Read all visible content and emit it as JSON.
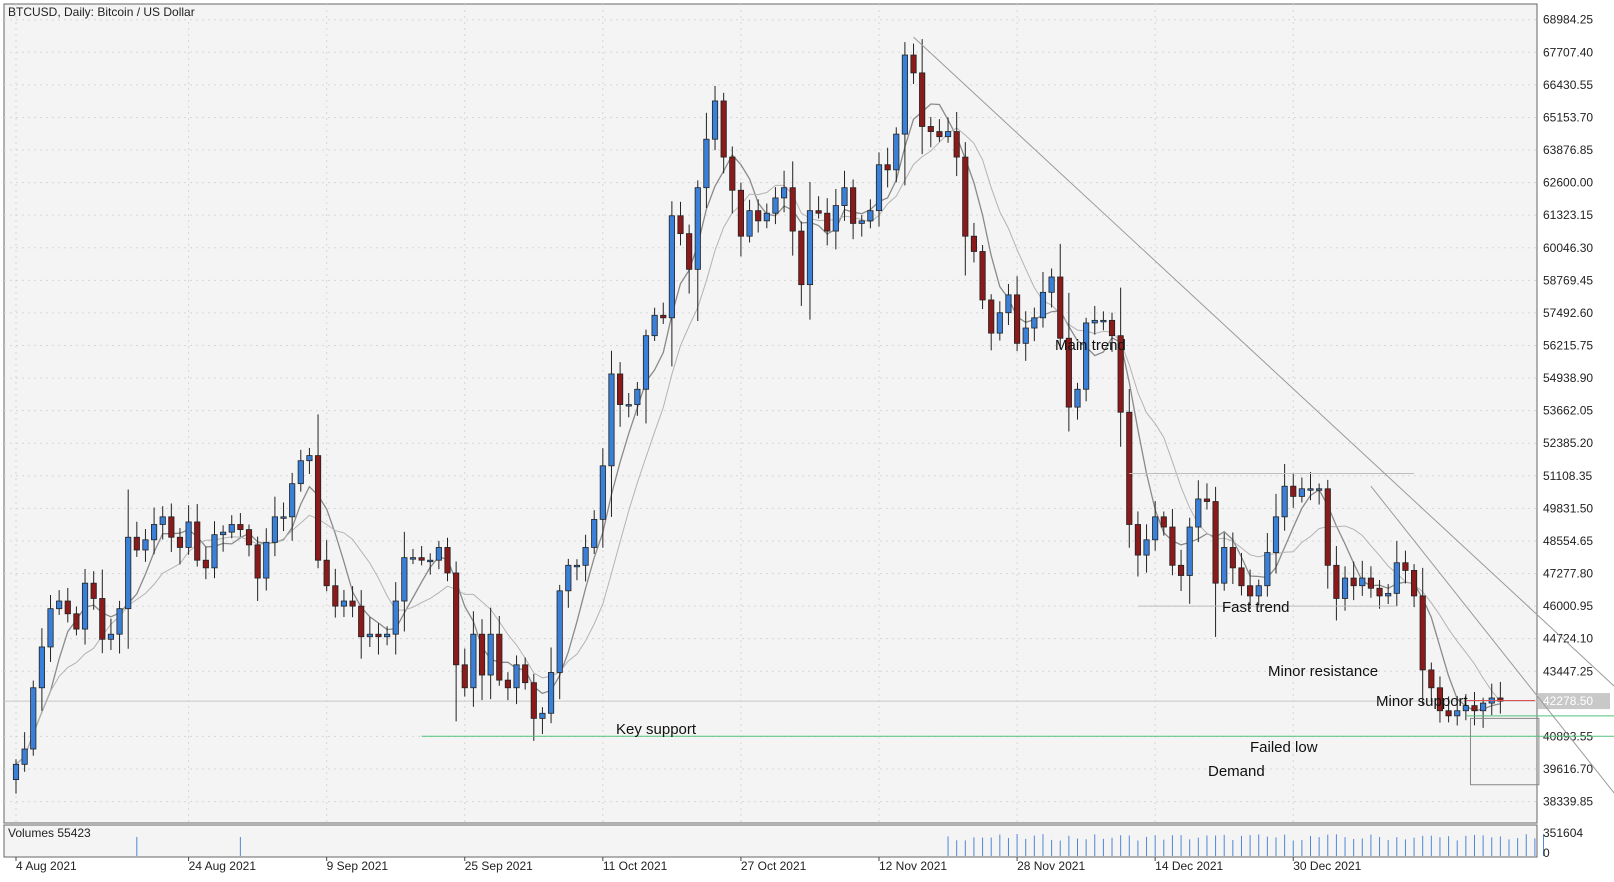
{
  "header": {
    "title": "BTCUSD, Daily:  Bitcoin / US Dollar"
  },
  "current_price": "42278.50",
  "volume_panel": {
    "label": "Volumes 55423"
  },
  "colors": {
    "background": "#f4f4f4",
    "grid": "#d6d6d6",
    "bull": "#3a80d8",
    "bear": "#8b1a1a",
    "wick": "#222222",
    "ma": "#9a9a9a",
    "trendline": "#9a9a9a",
    "support": "#52c27c",
    "resistance": "#e05050",
    "volume": "#4f86d9"
  },
  "chart_data": {
    "type": "candlestick",
    "title": "BTCUSD, Daily:  Bitcoin / US Dollar",
    "y_ticks": [
      "68984.25",
      "67707.40",
      "66430.55",
      "65153.70",
      "63876.85",
      "62600.00",
      "61323.15",
      "60046.30",
      "58769.45",
      "57492.60",
      "56215.75",
      "54938.90",
      "53662.05",
      "52385.20",
      "51108.35",
      "49831.50",
      "48554.65",
      "47277.80",
      "46000.95",
      "44724.10",
      "43447.25",
      "42278.50",
      "40893.55",
      "39616.70",
      "38339.85"
    ],
    "ylim": [
      37500,
      69600
    ],
    "x_ticks": [
      {
        "label": "4 Aug 2021",
        "index": 0
      },
      {
        "label": "24 Aug 2021",
        "index": 20
      },
      {
        "label": "9 Sep 2021",
        "index": 36
      },
      {
        "label": "25 Sep 2021",
        "index": 52
      },
      {
        "label": "11 Oct 2021",
        "index": 68
      },
      {
        "label": "27 Oct 2021",
        "index": 84
      },
      {
        "label": "12 Nov 2021",
        "index": 100
      },
      {
        "label": "28 Nov 2021",
        "index": 116
      },
      {
        "label": "14 Dec 2021",
        "index": 132
      },
      {
        "label": "30 Dec 2021",
        "index": 148
      }
    ],
    "start_date": "2021-08-04",
    "closes": [
      39800,
      40400,
      42800,
      44400,
      45900,
      46200,
      45700,
      45100,
      46900,
      46300,
      44700,
      44900,
      45900,
      48700,
      48200,
      48600,
      49200,
      49500,
      48700,
      48300,
      49300,
      47800,
      47500,
      48800,
      48900,
      49200,
      49000,
      48400,
      47100,
      48500,
      49500,
      49500,
      50800,
      51700,
      51900,
      47800,
      46800,
      46000,
      46200,
      46000,
      44800,
      44900,
      44800,
      44900,
      46200,
      47900,
      47900,
      47800,
      47800,
      48300,
      47300,
      43700,
      42800,
      44900,
      43300,
      44900,
      43100,
      42800,
      43700,
      43000,
      41600,
      41800,
      43400,
      46600,
      47600,
      47600,
      48300,
      49400,
      51500,
      55100,
      53900,
      53900,
      54500,
      56600,
      57400,
      57300,
      61300,
      60600,
      59200,
      62400,
      64300,
      65800,
      63600,
      62300,
      60500,
      61500,
      61100,
      61400,
      62000,
      62400,
      60700,
      58600,
      61500,
      61400,
      60700,
      61700,
      62400,
      61000,
      61100,
      61500,
      63300,
      63100,
      64500,
      67600,
      66900,
      64800,
      64600,
      64400,
      64600,
      63600,
      60500,
      59900,
      58000,
      56700,
      57500,
      58200,
      56300,
      56900,
      57300,
      58300,
      58900,
      56500,
      53800,
      54500,
      57100,
      57200,
      57200,
      56600,
      53600,
      49200,
      48000,
      48600,
      49500,
      49100,
      47600,
      47200,
      49100,
      50200,
      50100,
      46900,
      48300,
      47500,
      46800,
      46400,
      46800,
      48100,
      49500,
      50700,
      50300,
      50600,
      50600,
      50600,
      47600,
      46300,
      47100,
      46800,
      47100,
      46700,
      46400,
      46500,
      47700,
      47400,
      46400,
      43500,
      42800,
      41900,
      41700,
      41900,
      42100,
      41900,
      42200,
      42400,
      42278.5
    ],
    "volumes": [
      0.05,
      0.05,
      0.05,
      0.05,
      0.05,
      0.05,
      0.05,
      0.05,
      0.05,
      0.05,
      0.05,
      0.05,
      0.05,
      0.05,
      0.05,
      0.05,
      0.05,
      0.05,
      0.05,
      0.05,
      0.05,
      0.05,
      0.05,
      0.05,
      0.05,
      0.05,
      0.05,
      0.05,
      0.05,
      0.05,
      0.05,
      0.05,
      0.05,
      0.05,
      0.05,
      0.05,
      0.05,
      0.05,
      0.05,
      0.05,
      0.05,
      0.05,
      0.05,
      0.05,
      0.05,
      0.05,
      0.05,
      0.05,
      0.05,
      0.05,
      0.05,
      0.05,
      0.05,
      0.05,
      0.05,
      0.05,
      0.05,
      0.05,
      0.05,
      0.05,
      0.05,
      0.05,
      0.05,
      0.05,
      0.05,
      0.05,
      0.05,
      0.05,
      0.05,
      0.05,
      0.05,
      0.05,
      0.05,
      0.05,
      0.05,
      0.05,
      0.05,
      0.05,
      0.05,
      0.05,
      0.05,
      0.05,
      0.05,
      0.05,
      0.05,
      0.05,
      0.05,
      0.05,
      0.05,
      0.05,
      0.05,
      0.05,
      0.05,
      0.05,
      0.05,
      0.05,
      0.05,
      0.05,
      0.05,
      0.05,
      0.05,
      0.05,
      0.05,
      0.05,
      0.05,
      0.05,
      0.05,
      0.05,
      0.05,
      0.05,
      0.05,
      0.05,
      0.05,
      0.05,
      0.05,
      0.05,
      0.05,
      0.05,
      0.05,
      0.05,
      0.05,
      0.05,
      0.05,
      0.05,
      0.05,
      0.05,
      0.05,
      0.05,
      0.05,
      0.05,
      0.05,
      0.05,
      0.05,
      0.05,
      0.05,
      0.05,
      0.05,
      0.05,
      0.05,
      0.05,
      0.05,
      0.05,
      0.05,
      0.05,
      0.05,
      0.05,
      0.05,
      0.05,
      0.05,
      0.05,
      0.05,
      0.05,
      0.05,
      0.05,
      0.05,
      0.05,
      0.05,
      0.05,
      0.05,
      0.05,
      0.05,
      0.05,
      0.05,
      0.05,
      0.05,
      0.05,
      0.05,
      0.05,
      0.05,
      0.05,
      0.05,
      0.05,
      0.05,
      0.05,
      0.05,
      0.05,
      0.05,
      0.05
    ],
    "annotations": [
      {
        "text": "Main trend",
        "kind": "trendline",
        "from": [
          104,
          68300
        ],
        "to": [
          202,
          37600
        ]
      },
      {
        "text": "Fast trend",
        "kind": "trendline",
        "from": [
          157,
          50700
        ],
        "to": [
          187,
          37900
        ]
      },
      {
        "text": "Key support",
        "kind": "hline",
        "y": 40900,
        "from_index": 47,
        "to_index": 190
      },
      {
        "text": "Minor support",
        "kind": "hline",
        "y": 41700,
        "from_index": 168,
        "to_index": 194
      },
      {
        "text": "Minor resistance",
        "kind": "hline",
        "y": 42300,
        "from_index": 168,
        "to_index": 176
      },
      {
        "text": "Failed low",
        "kind": "label",
        "x": 176,
        "y": 39600
      },
      {
        "text": "Demand",
        "kind": "box",
        "x": [
          169,
          176
        ],
        "y": [
          39000,
          41600
        ]
      }
    ],
    "range_lines": [
      {
        "y": 51200,
        "from_index": 129,
        "to_index": 162
      },
      {
        "y": 46000,
        "from_index": 130,
        "to_index": 160
      }
    ],
    "moving_averages": [
      "MA fast",
      "MA slow"
    ],
    "grid": true
  }
}
